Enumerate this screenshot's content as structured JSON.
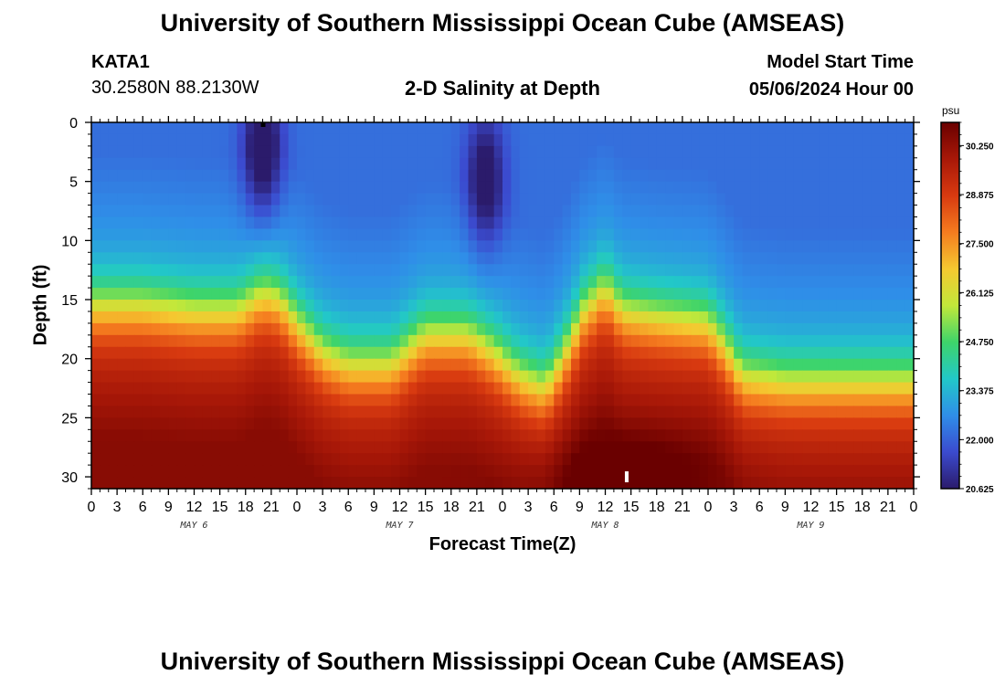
{
  "header": {
    "title": "University of Southern Mississippi Ocean Cube (AMSEAS)",
    "station": "KATA1",
    "coords": "30.2580N  88.2130W",
    "subtitle": "2-D Salinity at Depth",
    "model_start_label": "Model Start Time",
    "model_start_value": "05/06/2024 Hour 00"
  },
  "footer": {
    "title": "University of Southern Mississippi Ocean Cube (AMSEAS)"
  },
  "chart_data": {
    "type": "heatmap",
    "xlabel": "Forecast Time(Z)",
    "ylabel": "Depth (ft)",
    "x_tick_labels": [
      "0",
      "3",
      "6",
      "9",
      "12",
      "15",
      "18",
      "21",
      "0",
      "3",
      "6",
      "9",
      "12",
      "15",
      "18",
      "21",
      "0",
      "3",
      "6",
      "9",
      "12",
      "15",
      "18",
      "21",
      "0",
      "3",
      "6",
      "9",
      "12",
      "15",
      "18",
      "21",
      "0"
    ],
    "date_labels": [
      {
        "label": "MAY 6",
        "hour": 12
      },
      {
        "label": "MAY 7",
        "hour": 36
      },
      {
        "label": "MAY 8",
        "hour": 60
      },
      {
        "label": "MAY 9",
        "hour": 84
      }
    ],
    "x_range_hours": [
      0,
      96
    ],
    "y_ticks": [
      0,
      5,
      10,
      15,
      20,
      25,
      30
    ],
    "y_range_ft": [
      0,
      31
    ],
    "y_reversed": true,
    "colorbar": {
      "unit": "psu",
      "min": 20.625,
      "max": 30.9,
      "tick_labels": [
        "30.250",
        "28.875",
        "27.500",
        "26.125",
        "24.750",
        "23.375",
        "22.000",
        "20.625"
      ],
      "tick_values": [
        30.25,
        28.875,
        27.5,
        26.125,
        24.75,
        23.375,
        22.0,
        20.625
      ],
      "colormap": [
        "#2b1b6b",
        "#3b4bcf",
        "#2f8ee8",
        "#22c8c8",
        "#3ed46a",
        "#c2e83a",
        "#f5c830",
        "#f57c1f",
        "#d83a10",
        "#a81808",
        "#6a0000"
      ]
    },
    "halocline_depth_ft": [
      {
        "hour": 0,
        "depth": 15.5
      },
      {
        "hour": 6,
        "depth": 15.5
      },
      {
        "hour": 12,
        "depth": 16
      },
      {
        "hour": 17,
        "depth": 16
      },
      {
        "hour": 20,
        "depth": 14.5
      },
      {
        "hour": 22,
        "depth": 15
      },
      {
        "hour": 24,
        "depth": 17
      },
      {
        "hour": 27,
        "depth": 19.5
      },
      {
        "hour": 30,
        "depth": 20.5
      },
      {
        "hour": 35,
        "depth": 20.5
      },
      {
        "hour": 39,
        "depth": 18
      },
      {
        "hour": 44,
        "depth": 18
      },
      {
        "hour": 47,
        "depth": 19.5
      },
      {
        "hour": 50,
        "depth": 21.5
      },
      {
        "hour": 53,
        "depth": 22.5
      },
      {
        "hour": 55,
        "depth": 20
      },
      {
        "hour": 57.5,
        "depth": 16
      },
      {
        "hour": 60,
        "depth": 14
      },
      {
        "hour": 62,
        "depth": 16
      },
      {
        "hour": 66,
        "depth": 16.5
      },
      {
        "hour": 72,
        "depth": 17
      },
      {
        "hour": 74,
        "depth": 19
      },
      {
        "hour": 76,
        "depth": 21.5
      },
      {
        "hour": 81,
        "depth": 22
      },
      {
        "hour": 87,
        "depth": 22
      },
      {
        "hour": 91,
        "depth": 22
      },
      {
        "hour": 96,
        "depth": 22
      }
    ],
    "fresh_anomalies": [
      {
        "hour": 20,
        "depth": 2.5,
        "salinity": 20.7
      },
      {
        "hour": 46,
        "depth": 5,
        "salinity": 21.0
      }
    ],
    "salty_anomaly": {
      "hour": 62.5,
      "depth": 30,
      "salinity": 30.9
    }
  }
}
